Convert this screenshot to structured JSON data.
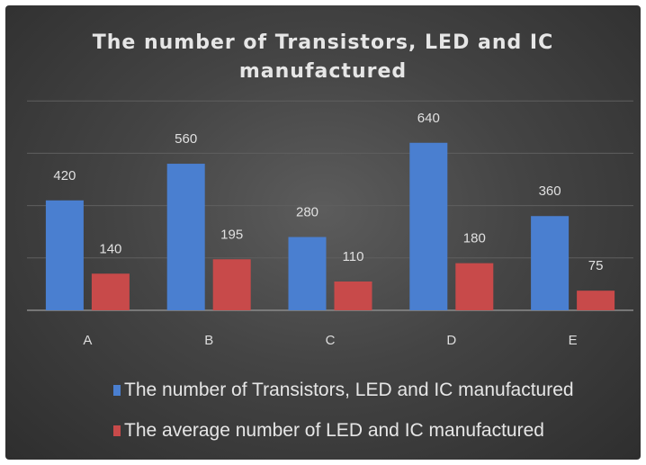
{
  "chart_data": {
    "type": "bar",
    "title_lines": [
      "The number of Transistors, LED and IC",
      "manufactured"
    ],
    "categories": [
      "A",
      "B",
      "C",
      "D",
      "E"
    ],
    "series": [
      {
        "name": "The number of Transistors, LED and IC manufactured",
        "values": [
          420,
          560,
          280,
          640,
          360
        ],
        "color": "#4a7fd0"
      },
      {
        "name": "The average number of LED and IC manufactured",
        "values": [
          140,
          195,
          110,
          180,
          75
        ],
        "color": "#c84a4a"
      }
    ],
    "ylim": [
      0,
      800
    ],
    "grid": true,
    "data_labels": true,
    "legend_position": "bottom"
  }
}
